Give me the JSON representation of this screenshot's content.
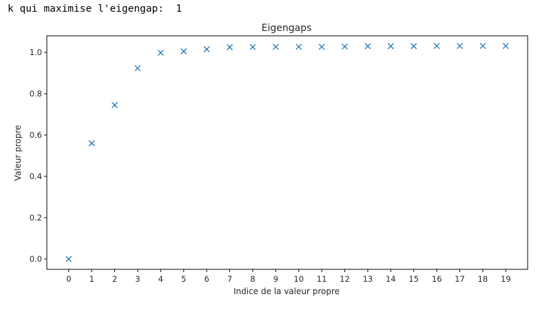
{
  "console": {
    "output_line": "k qui maximise l'eigengap:  1"
  },
  "chart_data": {
    "type": "scatter",
    "title": "Eigengaps",
    "xlabel": "Indice de la valeur propre",
    "ylabel": "Valeur propre",
    "marker": "x",
    "color": "#1f77b4",
    "xlim": [
      -0.95,
      19.95
    ],
    "ylim": [
      -0.05,
      1.08
    ],
    "xticks": [
      0,
      1,
      2,
      3,
      4,
      5,
      6,
      7,
      8,
      9,
      10,
      11,
      12,
      13,
      14,
      15,
      16,
      17,
      18,
      19
    ],
    "yticks": [
      0.0,
      0.2,
      0.4,
      0.6,
      0.8,
      1.0
    ],
    "ytick_labels": [
      "0.0",
      "0.2",
      "0.4",
      "0.6",
      "0.8",
      "1.0"
    ],
    "grid": false,
    "x": [
      0,
      1,
      2,
      3,
      4,
      5,
      6,
      7,
      8,
      9,
      10,
      11,
      12,
      13,
      14,
      15,
      16,
      17,
      18,
      19
    ],
    "y": [
      0.0,
      0.56,
      0.745,
      0.923,
      0.998,
      1.005,
      1.015,
      1.025,
      1.026,
      1.027,
      1.027,
      1.027,
      1.028,
      1.03,
      1.03,
      1.03,
      1.031,
      1.031,
      1.031,
      1.031
    ]
  }
}
